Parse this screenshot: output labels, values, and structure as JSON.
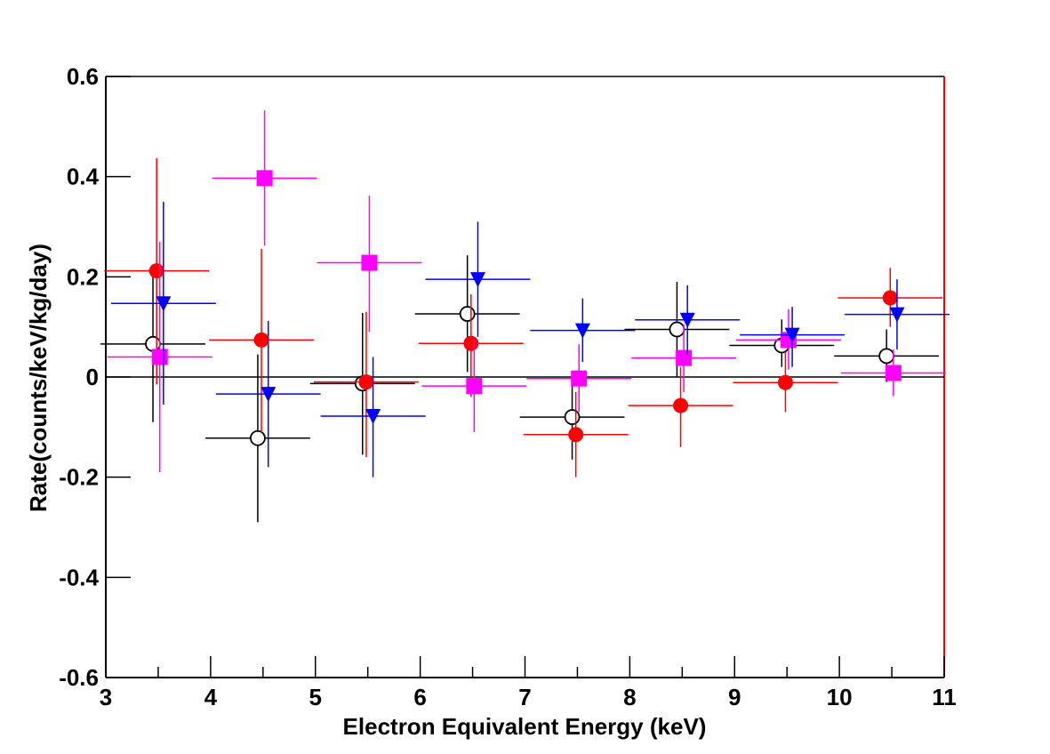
{
  "chart_data": {
    "type": "scatter",
    "xlabel": "Electron Equivalent Energy (keV)",
    "ylabel": "Rate(counts/keV/kg/day)",
    "xlim": [
      3,
      11
    ],
    "ylim": [
      -0.6,
      0.6
    ],
    "x_ticks": [
      3,
      4,
      5,
      6,
      7,
      8,
      9,
      10,
      11
    ],
    "y_ticks": [
      -0.6,
      -0.4,
      -0.2,
      0,
      0.2,
      0.4,
      0.6
    ],
    "x_tick_labels": [
      "3",
      "4",
      "5",
      "6",
      "7",
      "8",
      "9",
      "10",
      "11"
    ],
    "y_tick_labels": [
      "-0.6",
      "-0.4",
      "-0.2",
      "0",
      "0.2",
      "0.4",
      "0.6"
    ],
    "reference_line": 0,
    "series": [
      {
        "color": "#000000",
        "marker": "open-circle",
        "x_offset": -0.05,
        "points": [
          {
            "x": 3.5,
            "y": 0.066,
            "ylo": -0.09,
            "yhi": 0.21
          },
          {
            "x": 4.5,
            "y": -0.122,
            "ylo": -0.29,
            "yhi": 0.045
          },
          {
            "x": 5.5,
            "y": -0.013,
            "ylo": -0.155,
            "yhi": 0.128
          },
          {
            "x": 6.5,
            "y": 0.126,
            "ylo": 0.01,
            "yhi": 0.243
          },
          {
            "x": 7.5,
            "y": -0.08,
            "ylo": -0.165,
            "yhi": 0.0
          },
          {
            "x": 8.5,
            "y": 0.095,
            "ylo": 0.0,
            "yhi": 0.19
          },
          {
            "x": 9.5,
            "y": 0.063,
            "ylo": 0.02,
            "yhi": 0.115
          },
          {
            "x": 10.5,
            "y": 0.042,
            "ylo": -0.01,
            "yhi": 0.095
          }
        ]
      },
      {
        "color": "#ff0000",
        "marker": "filled-circle",
        "x_offset": -0.015,
        "points": [
          {
            "x": 3.5,
            "y": 0.212,
            "ylo": -0.015,
            "yhi": 0.437
          },
          {
            "x": 4.5,
            "y": 0.074,
            "ylo": -0.11,
            "yhi": 0.256
          },
          {
            "x": 5.5,
            "y": -0.01,
            "ylo": -0.16,
            "yhi": 0.13
          },
          {
            "x": 6.5,
            "y": 0.067,
            "ylo": -0.04,
            "yhi": 0.165
          },
          {
            "x": 7.5,
            "y": -0.115,
            "ylo": -0.2,
            "yhi": -0.03
          },
          {
            "x": 8.5,
            "y": -0.057,
            "ylo": -0.14,
            "yhi": 0.02
          },
          {
            "x": 9.5,
            "y": -0.011,
            "ylo": -0.07,
            "yhi": 0.05
          },
          {
            "x": 10.5,
            "y": 0.158,
            "ylo": 0.1,
            "yhi": 0.218
          }
        ]
      },
      {
        "color": "#ff00ff",
        "marker": "filled-square",
        "x_offset": 0.015,
        "points": [
          {
            "x": 3.5,
            "y": 0.04,
            "ylo": -0.19,
            "yhi": 0.27
          },
          {
            "x": 4.5,
            "y": 0.397,
            "ylo": 0.262,
            "yhi": 0.532
          },
          {
            "x": 5.5,
            "y": 0.228,
            "ylo": 0.09,
            "yhi": 0.362
          },
          {
            "x": 6.5,
            "y": -0.018,
            "ylo": -0.11,
            "yhi": 0.075
          },
          {
            "x": 7.5,
            "y": -0.003,
            "ylo": -0.07,
            "yhi": 0.065
          },
          {
            "x": 8.5,
            "y": 0.038,
            "ylo": -0.03,
            "yhi": 0.105
          },
          {
            "x": 9.5,
            "y": 0.074,
            "ylo": 0.015,
            "yhi": 0.135
          },
          {
            "x": 10.5,
            "y": 0.008,
            "ylo": -0.038,
            "yhi": 0.055
          }
        ]
      },
      {
        "color": "#0000ff",
        "marker": "filled-triangle-down",
        "x_offset": 0.05,
        "points": [
          {
            "x": 3.5,
            "y": 0.147,
            "ylo": -0.055,
            "yhi": 0.35
          },
          {
            "x": 4.5,
            "y": -0.034,
            "ylo": -0.18,
            "yhi": 0.112
          },
          {
            "x": 5.5,
            "y": -0.078,
            "ylo": -0.2,
            "yhi": 0.04
          },
          {
            "x": 6.5,
            "y": 0.195,
            "ylo": 0.08,
            "yhi": 0.31
          },
          {
            "x": 7.5,
            "y": 0.093,
            "ylo": 0.03,
            "yhi": 0.157
          },
          {
            "x": 8.5,
            "y": 0.114,
            "ylo": 0.045,
            "yhi": 0.183
          },
          {
            "x": 9.5,
            "y": 0.084,
            "ylo": 0.02,
            "yhi": 0.14
          },
          {
            "x": 10.5,
            "y": 0.125,
            "ylo": 0.055,
            "yhi": 0.195
          }
        ]
      }
    ]
  }
}
